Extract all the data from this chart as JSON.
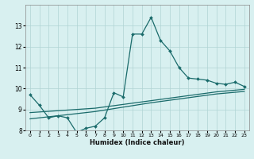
{
  "xlabel": "Humidex (Indice chaleur)",
  "x_values": [
    0,
    1,
    2,
    3,
    4,
    5,
    6,
    7,
    8,
    9,
    10,
    11,
    12,
    13,
    14,
    15,
    16,
    17,
    18,
    19,
    20,
    21,
    22,
    23
  ],
  "line1_y": [
    9.7,
    9.2,
    8.6,
    8.7,
    8.6,
    7.9,
    8.1,
    8.2,
    8.6,
    9.8,
    9.6,
    12.6,
    12.6,
    13.4,
    12.3,
    11.8,
    11.0,
    10.5,
    10.45,
    10.4,
    10.25,
    10.2,
    10.3,
    10.1
  ],
  "line2_y": [
    8.85,
    8.88,
    8.91,
    8.94,
    8.97,
    9.0,
    9.03,
    9.06,
    9.12,
    9.18,
    9.24,
    9.3,
    9.36,
    9.42,
    9.48,
    9.54,
    9.6,
    9.66,
    9.72,
    9.78,
    9.84,
    9.88,
    9.92,
    9.96
  ],
  "line3_y": [
    8.55,
    8.6,
    8.65,
    8.7,
    8.75,
    8.8,
    8.85,
    8.9,
    8.97,
    9.04,
    9.11,
    9.18,
    9.25,
    9.32,
    9.38,
    9.44,
    9.5,
    9.56,
    9.62,
    9.68,
    9.74,
    9.78,
    9.82,
    9.86
  ],
  "line_color": "#1a6b6b",
  "background_color": "#d8f0f0",
  "grid_color": "#b0d4d4",
  "ylim": [
    8,
    14
  ],
  "yticks": [
    8,
    9,
    10,
    11,
    12,
    13
  ],
  "xlim": [
    -0.5,
    23.5
  ],
  "xticks": [
    0,
    1,
    2,
    3,
    4,
    5,
    6,
    7,
    8,
    9,
    10,
    11,
    12,
    13,
    14,
    15,
    16,
    17,
    18,
    19,
    20,
    21,
    22,
    23
  ]
}
